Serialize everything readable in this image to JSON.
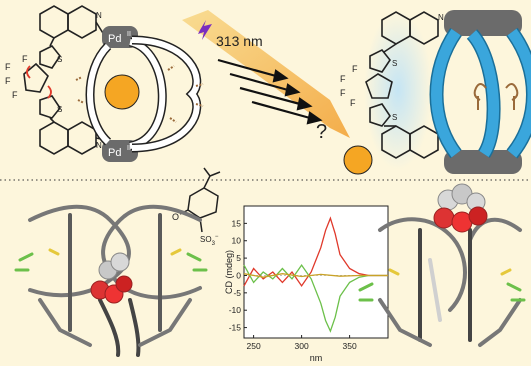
{
  "figure": {
    "labels": {
      "pd_top": "Pd",
      "pd_bottom": "Pd",
      "pd_ox": "II",
      "wavelength": "313 nm",
      "question": "?",
      "fluorine": "F",
      "sulfur": "S",
      "nitrogen": "N",
      "sulfonate_o": "O",
      "sulfonate_group": "SO",
      "sulfonate_sub": "3",
      "sulfonate_charge": "−"
    },
    "colors": {
      "background": "#fdf6dc",
      "guest": "#f5a623",
      "cage_blue": "#3aa6dc",
      "linker_brown": "#9a6a3a",
      "arrow_gradient_start": "#f8d98a",
      "arrow_gradient_end": "#f3a53a",
      "cd_red": "#e0392b",
      "cd_green": "#6cc04a",
      "cd_gold": "#c9a227"
    },
    "icons": [
      "lightning-icon",
      "camphor-sulfonate-structure",
      "crystal-structure-left",
      "crystal-structure-right"
    ]
  },
  "chart_data": {
    "type": "line",
    "xlabel": "nm",
    "ylabel": "CD (mdeg)",
    "xlim": [
      240,
      390
    ],
    "ylim": [
      -18,
      20
    ],
    "xticks": [
      250,
      300,
      350
    ],
    "yticks": [
      15,
      10,
      5,
      0,
      -5,
      -10,
      -15
    ],
    "series": [
      {
        "color": "#e0392b",
        "x": [
          240,
          250,
          260,
          270,
          280,
          290,
          300,
          310,
          320,
          325,
          330,
          335,
          340,
          350,
          360,
          370,
          380,
          390
        ],
        "y": [
          -3,
          2,
          -1,
          1,
          -2,
          1,
          -3,
          1,
          8,
          13,
          16.5,
          12,
          6,
          2,
          0.5,
          0,
          0,
          0
        ]
      },
      {
        "color": "#6cc04a",
        "x": [
          240,
          250,
          260,
          270,
          280,
          290,
          300,
          310,
          320,
          325,
          330,
          335,
          340,
          350,
          360,
          370,
          380,
          390
        ],
        "y": [
          3,
          -2,
          1,
          -1,
          2,
          -1,
          3,
          -1,
          -8,
          -13,
          -16,
          -12,
          -6,
          -2,
          -0.5,
          0,
          0,
          0
        ]
      },
      {
        "color": "#c9a227",
        "x": [
          240,
          260,
          280,
          300,
          320,
          340,
          360,
          390
        ],
        "y": [
          0.5,
          -0.5,
          0.5,
          -0.3,
          0.3,
          -0.2,
          0,
          0
        ]
      }
    ]
  }
}
